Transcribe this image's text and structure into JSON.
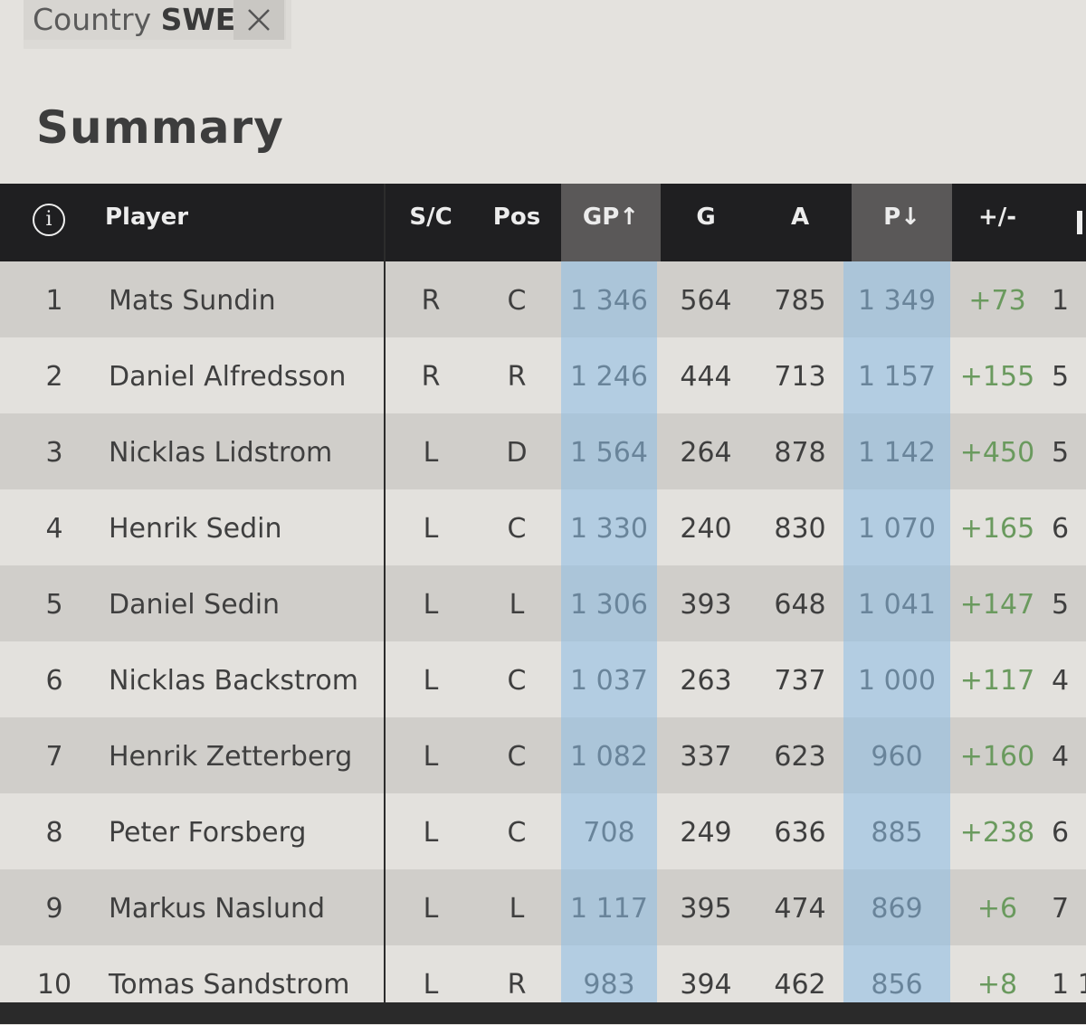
{
  "filter": {
    "label": "Country",
    "value": "SWE",
    "close_icon": "close-icon"
  },
  "title": "Summary",
  "table": {
    "info_icon": "i",
    "headers": {
      "player": "Player",
      "sc": "S/C",
      "pos": "Pos",
      "gp": "GP↑",
      "g": "G",
      "a": "A",
      "p": "P↓",
      "pm": "+/-"
    },
    "rows": [
      {
        "rank": "1",
        "player": "Mats Sundin",
        "sc": "R",
        "pos": "C",
        "gp": "1 346",
        "g": "564",
        "a": "785",
        "p": "1 349",
        "pm": "+73",
        "extra": "1"
      },
      {
        "rank": "2",
        "player": "Daniel Alfredsson",
        "sc": "R",
        "pos": "R",
        "gp": "1 246",
        "g": "444",
        "a": "713",
        "p": "1 157",
        "pm": "+155",
        "extra": "5"
      },
      {
        "rank": "3",
        "player": "Nicklas Lidstrom",
        "sc": "L",
        "pos": "D",
        "gp": "1 564",
        "g": "264",
        "a": "878",
        "p": "1 142",
        "pm": "+450",
        "extra": "5"
      },
      {
        "rank": "4",
        "player": "Henrik Sedin",
        "sc": "L",
        "pos": "C",
        "gp": "1 330",
        "g": "240",
        "a": "830",
        "p": "1 070",
        "pm": "+165",
        "extra": "6"
      },
      {
        "rank": "5",
        "player": "Daniel Sedin",
        "sc": "L",
        "pos": "L",
        "gp": "1 306",
        "g": "393",
        "a": "648",
        "p": "1 041",
        "pm": "+147",
        "extra": "5"
      },
      {
        "rank": "6",
        "player": "Nicklas Backstrom",
        "sc": "L",
        "pos": "C",
        "gp": "1 037",
        "g": "263",
        "a": "737",
        "p": "1 000",
        "pm": "+117",
        "extra": "4"
      },
      {
        "rank": "7",
        "player": "Henrik Zetterberg",
        "sc": "L",
        "pos": "C",
        "gp": "1 082",
        "g": "337",
        "a": "623",
        "p": "960",
        "pm": "+160",
        "extra": "4"
      },
      {
        "rank": "8",
        "player": "Peter Forsberg",
        "sc": "L",
        "pos": "C",
        "gp": "708",
        "g": "249",
        "a": "636",
        "p": "885",
        "pm": "+238",
        "extra": "6"
      },
      {
        "rank": "9",
        "player": "Markus Naslund",
        "sc": "L",
        "pos": "L",
        "gp": "1 117",
        "g": "395",
        "a": "474",
        "p": "869",
        "pm": "+6",
        "extra": "7"
      },
      {
        "rank": "10",
        "player": "Tomas Sandstrom",
        "sc": "L",
        "pos": "R",
        "gp": "983",
        "g": "394",
        "a": "462",
        "p": "856",
        "pm": "+8",
        "extra": "1 1"
      }
    ]
  },
  "colors": {
    "header_bg": "#1f1f21",
    "highlight": "#8cbee6",
    "positive": "#6a9a5e"
  }
}
